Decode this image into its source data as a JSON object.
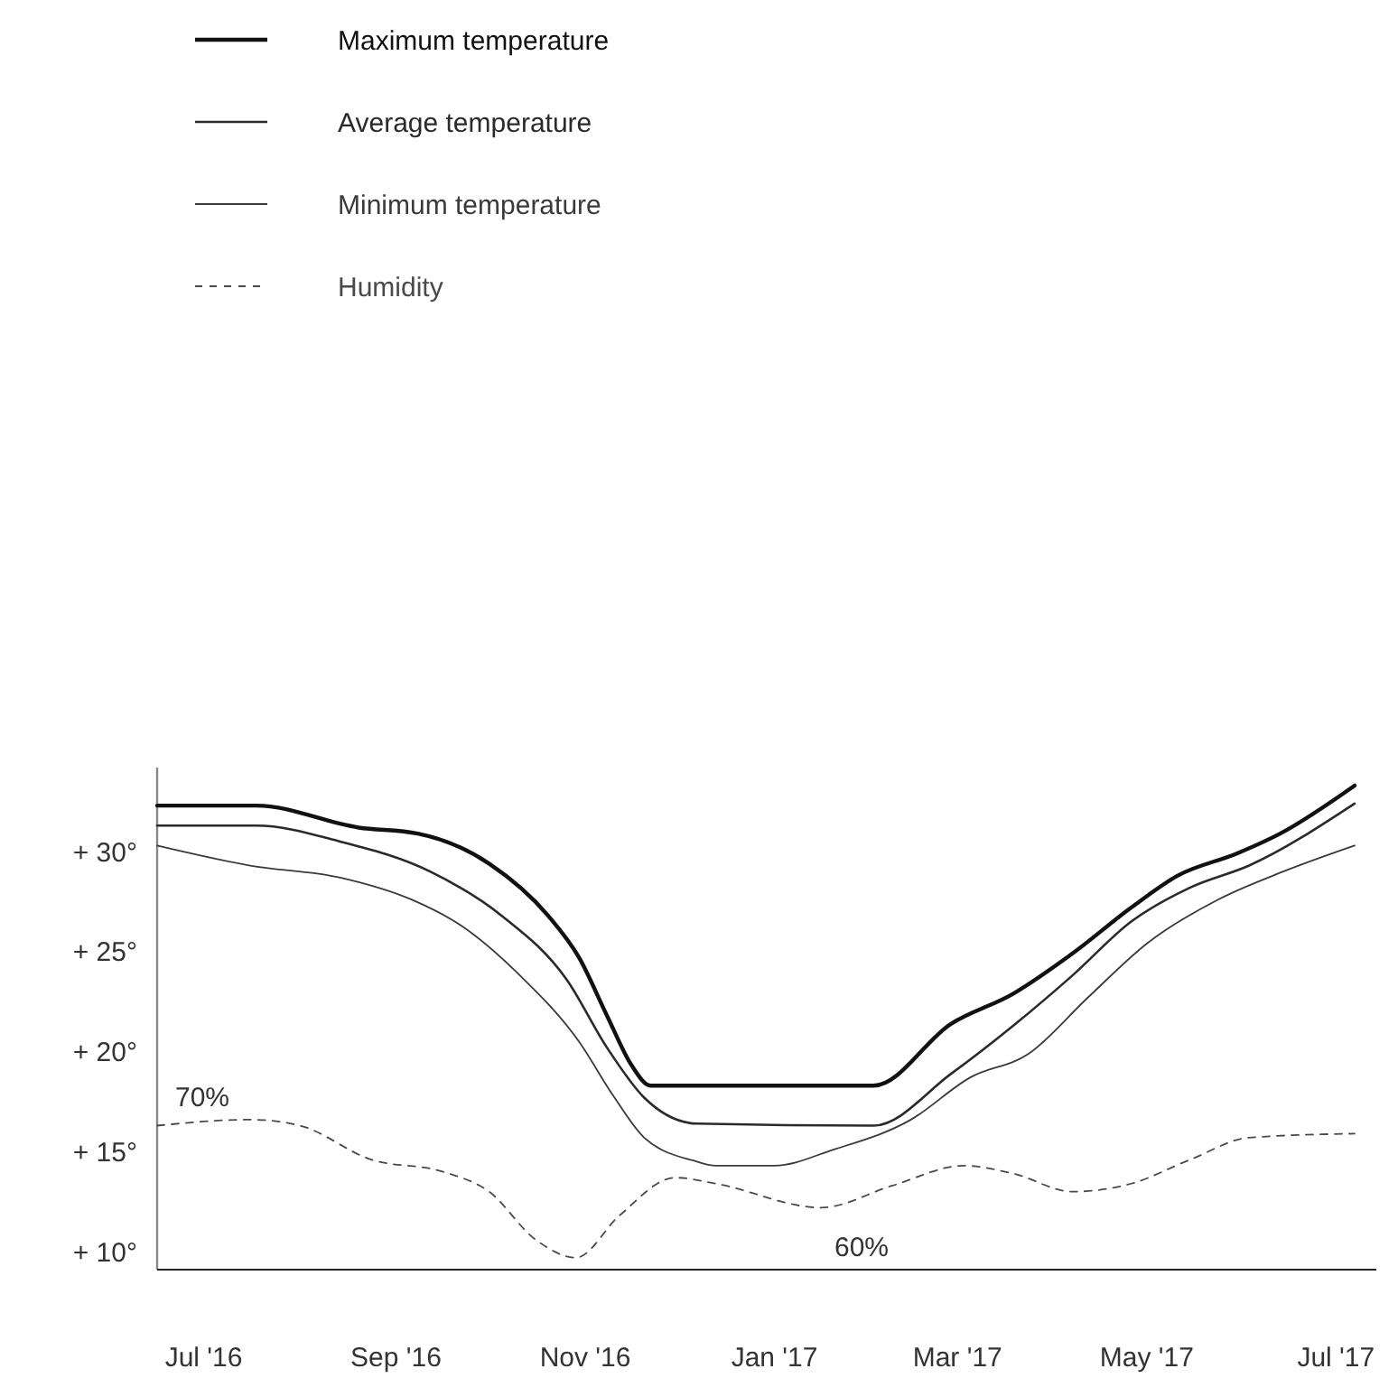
{
  "chart_data": {
    "type": "line",
    "legend": "top left",
    "grid": false,
    "xlim": [
      "2016-06-16",
      "2017-07-14"
    ],
    "ylim": [
      9.1,
      34.2
    ],
    "xticks": [
      {
        "value": "2016-07-01",
        "label": "Jul '16"
      },
      {
        "value": "2016-09-01",
        "label": "Sep '16"
      },
      {
        "value": "2016-11-01",
        "label": "Nov '16"
      },
      {
        "value": "2017-01-01",
        "label": "Jan '17"
      },
      {
        "value": "2017-03-01",
        "label": "Mar '17"
      },
      {
        "value": "2017-05-01",
        "label": "May '17"
      },
      {
        "value": "2017-07-01",
        "label": "Jul '17"
      }
    ],
    "yticks": [
      {
        "value": 10,
        "label": "+ 10°"
      },
      {
        "value": 15,
        "label": "+ 15°"
      },
      {
        "value": 20,
        "label": "+ 20°"
      },
      {
        "value": 25,
        "label": "+ 25°"
      },
      {
        "value": 30,
        "label": "+ 30°"
      }
    ],
    "annotations": [
      "70%",
      "60%"
    ],
    "series": [
      {
        "name": "Maximum temperature",
        "color": "#111111",
        "line_style": "solid",
        "x": [
          "2016-06-16",
          "2016-07-18",
          "2016-08-20",
          "2016-09-08",
          "2016-10-01",
          "2016-10-20",
          "2016-10-30",
          "2016-11-08",
          "2016-11-16",
          "2016-11-22",
          "2017-02-02",
          "2017-02-27",
          "2017-03-19",
          "2017-04-07",
          "2017-04-26",
          "2017-05-11",
          "2017-05-30",
          "2017-06-13",
          "2017-07-07"
        ],
        "values": [
          32.3,
          32.3,
          31.2,
          30.9,
          29.4,
          26.8,
          24.7,
          21.8,
          19.3,
          18.3,
          18.3,
          21.4,
          22.9,
          24.9,
          27.2,
          28.8,
          29.9,
          30.9,
          33.3
        ]
      },
      {
        "name": "Average temperature",
        "color": "#2a2a2a",
        "line_style": "solid",
        "x": [
          "2016-06-16",
          "2016-07-18",
          "2016-08-14",
          "2016-09-12",
          "2016-10-05",
          "2016-10-26",
          "2016-11-08",
          "2016-11-20",
          "2016-12-07",
          "2017-02-02",
          "2017-02-27",
          "2017-03-19",
          "2017-04-07",
          "2017-04-26",
          "2017-05-15",
          "2017-06-03",
          "2017-07-07"
        ],
        "values": [
          31.3,
          31.3,
          30.5,
          29.0,
          26.8,
          23.6,
          20.2,
          17.7,
          16.4,
          16.3,
          18.9,
          21.3,
          23.8,
          26.5,
          28.2,
          29.3,
          32.4
        ]
      },
      {
        "name": "Minimum temperature",
        "color": "#3a3a3a",
        "line_style": "solid",
        "x": [
          "2016-06-16",
          "2016-07-16",
          "2016-08-14",
          "2016-09-06",
          "2016-09-22",
          "2016-10-11",
          "2016-10-30",
          "2016-11-10",
          "2016-11-20",
          "2016-12-07",
          "2016-12-13",
          "2017-01-01",
          "2017-01-20",
          "2017-02-14",
          "2017-03-05",
          "2017-03-24",
          "2017-04-12",
          "2017-05-01",
          "2017-05-24",
          "2017-06-14",
          "2017-07-07"
        ],
        "values": [
          30.3,
          29.3,
          28.7,
          27.6,
          26.3,
          23.8,
          20.5,
          17.8,
          15.7,
          14.5,
          14.3,
          14.3,
          15.1,
          16.6,
          18.7,
          19.9,
          22.7,
          25.4,
          27.6,
          29.0,
          30.3
        ]
      },
      {
        "name": "Humidity",
        "color": "#4a4a4a",
        "line_style": "dashed",
        "x": [
          "2016-06-16",
          "2016-07-16",
          "2016-08-01",
          "2016-08-24",
          "2016-09-16",
          "2016-10-01",
          "2016-10-16",
          "2016-10-29",
          "2016-11-12",
          "2016-11-30",
          "2016-12-13",
          "2017-01-16",
          "2017-02-08",
          "2017-03-03",
          "2017-03-19",
          "2017-04-07",
          "2017-04-26",
          "2017-05-15",
          "2017-06-03",
          "2017-07-07"
        ],
        "values": [
          16.3,
          16.6,
          16.3,
          14.6,
          14.0,
          13.0,
          10.6,
          9.7,
          11.8,
          13.7,
          13.4,
          12.2,
          13.3,
          14.3,
          13.9,
          13.0,
          13.4,
          14.6,
          15.7,
          15.9
        ]
      }
    ]
  }
}
